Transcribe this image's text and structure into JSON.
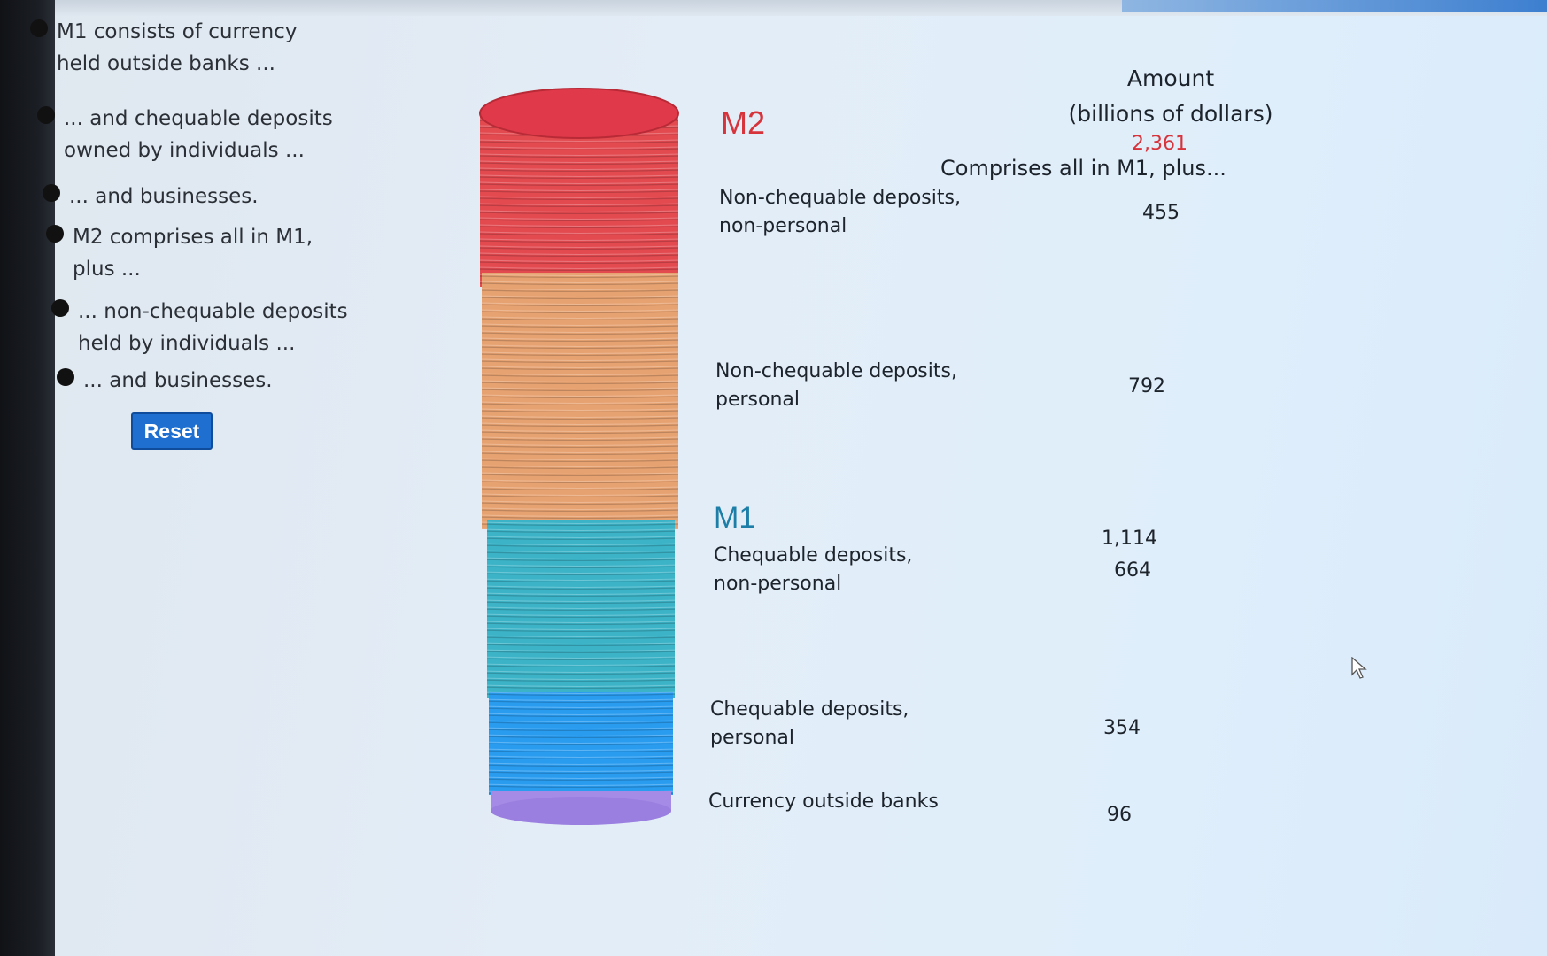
{
  "bullets": [
    {
      "text": "M1 consists of currency\nheld outside banks ..."
    },
    {
      "text": "... and chequable deposits\nowned by individuals ..."
    },
    {
      "text": "... and businesses."
    },
    {
      "text": "M2 comprises all in M1,\nplus ..."
    },
    {
      "text": "... non-chequable deposits\nheld by individuals ..."
    },
    {
      "text": "... and businesses."
    }
  ],
  "reset_label": "Reset",
  "header": {
    "amount": "Amount",
    "units": "(billions of dollars)"
  },
  "m2": {
    "title": "M2",
    "total": "2,361",
    "comprises": "Comprises all in M1, plus..."
  },
  "m1": {
    "title": "M1",
    "total": "1,114"
  },
  "rows": {
    "noncheq_nonpersonal": {
      "label": "Non-chequable deposits,\nnon-personal",
      "value": "455"
    },
    "noncheq_personal": {
      "label": "Non-chequable deposits,\npersonal",
      "value": "792"
    },
    "cheq_nonpersonal": {
      "label": "Chequable deposits,\nnon-personal",
      "value": "664"
    },
    "cheq_personal": {
      "label": "Chequable deposits,\npersonal",
      "value": "354"
    },
    "currency": {
      "label": "Currency outside banks",
      "value": "96"
    }
  },
  "colors": {
    "m2_accent": "#d7333b",
    "m1_accent": "#1d7fa8",
    "noncheq_nonpersonal": "#e24a50",
    "noncheq_personal": "#e7a271",
    "cheq_nonpersonal": "#3cb3c7",
    "cheq_personal": "#2a9cf0",
    "currency": "#a58be6",
    "reset_button": "#1e6fcf"
  }
}
